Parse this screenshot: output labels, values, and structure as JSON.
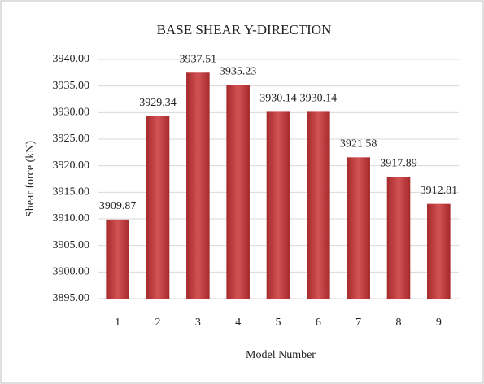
{
  "chart_data": {
    "type": "bar",
    "title": "BASE SHEAR Y-DIRECTION",
    "y_label": "Shear force (kN)",
    "x_label": "Model Number",
    "categories": [
      "1",
      "2",
      "3",
      "4",
      "5",
      "6",
      "7",
      "8",
      "9"
    ],
    "values": [
      3909.87,
      3929.34,
      3937.51,
      3935.23,
      3930.14,
      3930.14,
      3921.58,
      3917.89,
      3912.81
    ],
    "color": "#c0393b",
    "ylim": [
      3895,
      3940
    ],
    "yticks": [
      {
        "value": 3895,
        "label": "3895.00"
      },
      {
        "value": 3900,
        "label": "3900.00"
      },
      {
        "value": 3905,
        "label": "3905.00"
      },
      {
        "value": 3910,
        "label": "3910.00"
      },
      {
        "value": 3915,
        "label": "3915.00"
      },
      {
        "value": 3920,
        "label": "3920.00"
      },
      {
        "value": 3925,
        "label": "3925.00"
      },
      {
        "value": 3930,
        "label": "3930.00"
      },
      {
        "value": 3935,
        "label": "3935.00"
      },
      {
        "value": 3940,
        "label": "3940.00"
      }
    ],
    "grid": true
  }
}
